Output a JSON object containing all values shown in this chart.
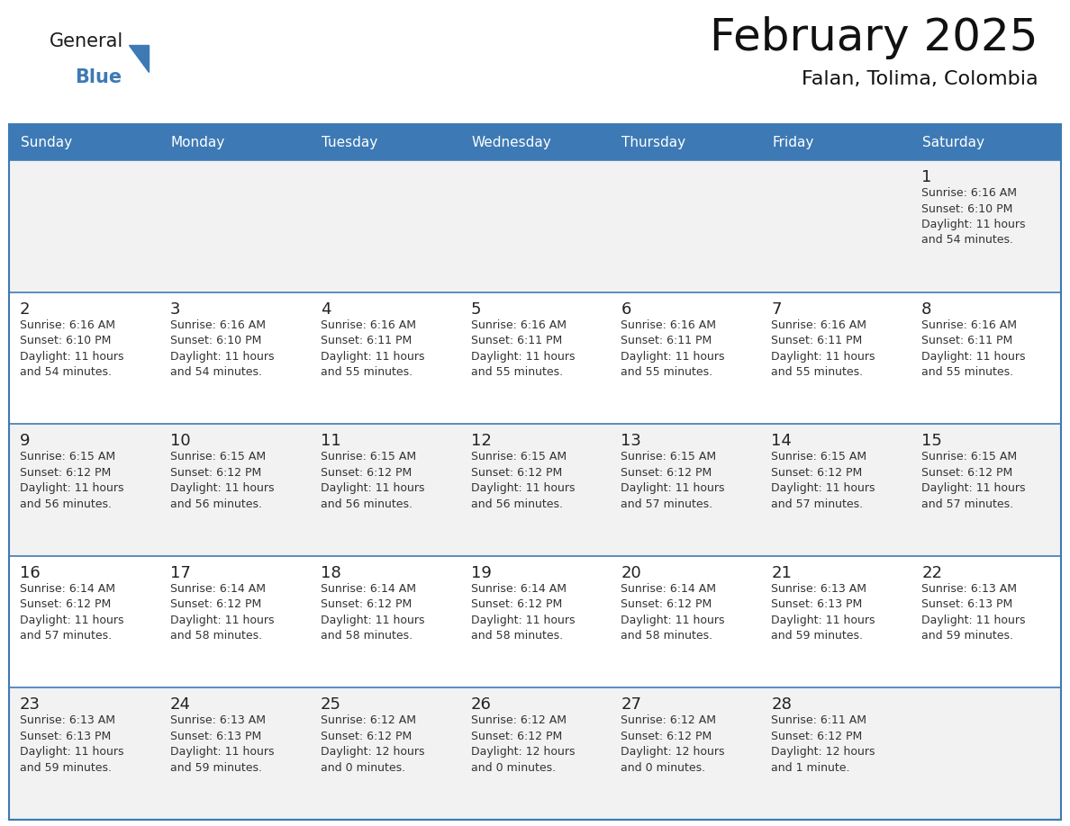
{
  "title": "February 2025",
  "subtitle": "Falan, Tolima, Colombia",
  "header_color": "#3d7ab5",
  "header_text_color": "#FFFFFF",
  "cell_bg_color": "#f2f2f2",
  "row_bg_color": "#FFFFFF",
  "cell_border_color": "#3d7ab5",
  "day_number_color": "#222222",
  "cell_text_color": "#333333",
  "background_color": "#FFFFFF",
  "days_of_week": [
    "Sunday",
    "Monday",
    "Tuesday",
    "Wednesday",
    "Thursday",
    "Friday",
    "Saturday"
  ],
  "weeks": [
    [
      {
        "day": null,
        "info": null
      },
      {
        "day": null,
        "info": null
      },
      {
        "day": null,
        "info": null
      },
      {
        "day": null,
        "info": null
      },
      {
        "day": null,
        "info": null
      },
      {
        "day": null,
        "info": null
      },
      {
        "day": 1,
        "info": "Sunrise: 6:16 AM\nSunset: 6:10 PM\nDaylight: 11 hours\nand 54 minutes."
      }
    ],
    [
      {
        "day": 2,
        "info": "Sunrise: 6:16 AM\nSunset: 6:10 PM\nDaylight: 11 hours\nand 54 minutes."
      },
      {
        "day": 3,
        "info": "Sunrise: 6:16 AM\nSunset: 6:10 PM\nDaylight: 11 hours\nand 54 minutes."
      },
      {
        "day": 4,
        "info": "Sunrise: 6:16 AM\nSunset: 6:11 PM\nDaylight: 11 hours\nand 55 minutes."
      },
      {
        "day": 5,
        "info": "Sunrise: 6:16 AM\nSunset: 6:11 PM\nDaylight: 11 hours\nand 55 minutes."
      },
      {
        "day": 6,
        "info": "Sunrise: 6:16 AM\nSunset: 6:11 PM\nDaylight: 11 hours\nand 55 minutes."
      },
      {
        "day": 7,
        "info": "Sunrise: 6:16 AM\nSunset: 6:11 PM\nDaylight: 11 hours\nand 55 minutes."
      },
      {
        "day": 8,
        "info": "Sunrise: 6:16 AM\nSunset: 6:11 PM\nDaylight: 11 hours\nand 55 minutes."
      }
    ],
    [
      {
        "day": 9,
        "info": "Sunrise: 6:15 AM\nSunset: 6:12 PM\nDaylight: 11 hours\nand 56 minutes."
      },
      {
        "day": 10,
        "info": "Sunrise: 6:15 AM\nSunset: 6:12 PM\nDaylight: 11 hours\nand 56 minutes."
      },
      {
        "day": 11,
        "info": "Sunrise: 6:15 AM\nSunset: 6:12 PM\nDaylight: 11 hours\nand 56 minutes."
      },
      {
        "day": 12,
        "info": "Sunrise: 6:15 AM\nSunset: 6:12 PM\nDaylight: 11 hours\nand 56 minutes."
      },
      {
        "day": 13,
        "info": "Sunrise: 6:15 AM\nSunset: 6:12 PM\nDaylight: 11 hours\nand 57 minutes."
      },
      {
        "day": 14,
        "info": "Sunrise: 6:15 AM\nSunset: 6:12 PM\nDaylight: 11 hours\nand 57 minutes."
      },
      {
        "day": 15,
        "info": "Sunrise: 6:15 AM\nSunset: 6:12 PM\nDaylight: 11 hours\nand 57 minutes."
      }
    ],
    [
      {
        "day": 16,
        "info": "Sunrise: 6:14 AM\nSunset: 6:12 PM\nDaylight: 11 hours\nand 57 minutes."
      },
      {
        "day": 17,
        "info": "Sunrise: 6:14 AM\nSunset: 6:12 PM\nDaylight: 11 hours\nand 58 minutes."
      },
      {
        "day": 18,
        "info": "Sunrise: 6:14 AM\nSunset: 6:12 PM\nDaylight: 11 hours\nand 58 minutes."
      },
      {
        "day": 19,
        "info": "Sunrise: 6:14 AM\nSunset: 6:12 PM\nDaylight: 11 hours\nand 58 minutes."
      },
      {
        "day": 20,
        "info": "Sunrise: 6:14 AM\nSunset: 6:12 PM\nDaylight: 11 hours\nand 58 minutes."
      },
      {
        "day": 21,
        "info": "Sunrise: 6:13 AM\nSunset: 6:13 PM\nDaylight: 11 hours\nand 59 minutes."
      },
      {
        "day": 22,
        "info": "Sunrise: 6:13 AM\nSunset: 6:13 PM\nDaylight: 11 hours\nand 59 minutes."
      }
    ],
    [
      {
        "day": 23,
        "info": "Sunrise: 6:13 AM\nSunset: 6:13 PM\nDaylight: 11 hours\nand 59 minutes."
      },
      {
        "day": 24,
        "info": "Sunrise: 6:13 AM\nSunset: 6:13 PM\nDaylight: 11 hours\nand 59 minutes."
      },
      {
        "day": 25,
        "info": "Sunrise: 6:12 AM\nSunset: 6:12 PM\nDaylight: 12 hours\nand 0 minutes."
      },
      {
        "day": 26,
        "info": "Sunrise: 6:12 AM\nSunset: 6:12 PM\nDaylight: 12 hours\nand 0 minutes."
      },
      {
        "day": 27,
        "info": "Sunrise: 6:12 AM\nSunset: 6:12 PM\nDaylight: 12 hours\nand 0 minutes."
      },
      {
        "day": 28,
        "info": "Sunrise: 6:11 AM\nSunset: 6:12 PM\nDaylight: 12 hours\nand 1 minute."
      },
      {
        "day": null,
        "info": null
      }
    ]
  ],
  "logo_text_general_color": "#1a1a1a",
  "logo_text_blue_color": "#3d7ab5",
  "logo_triangle_color": "#3d7ab5",
  "title_fontsize": 36,
  "subtitle_fontsize": 16,
  "header_fontsize": 11,
  "day_num_fontsize": 13,
  "cell_text_fontsize": 9
}
